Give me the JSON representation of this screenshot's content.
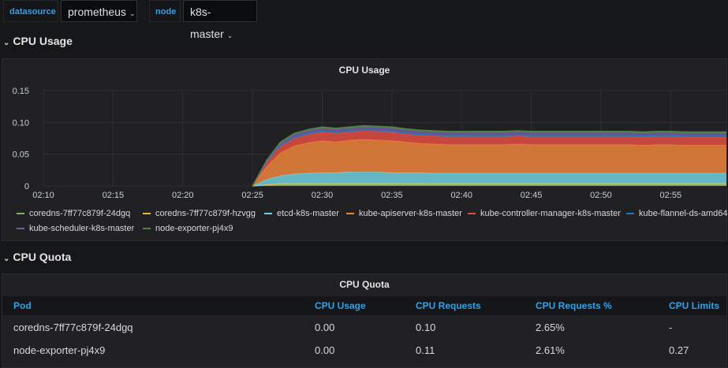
{
  "variables": [
    {
      "label": "datasource",
      "value": "prometheus"
    },
    {
      "label": "node",
      "value": "k8s-master"
    }
  ],
  "rows": {
    "cpu_usage_row": "CPU Usage",
    "cpu_quota_row": "CPU Quota"
  },
  "usage_panel": {
    "title": "CPU Usage"
  },
  "chart_data": {
    "type": "area",
    "stacked": true,
    "title": "CPU Usage",
    "x": [
      "02:10",
      "02:11",
      "02:12",
      "02:13",
      "02:14",
      "02:15",
      "02:16",
      "02:17",
      "02:18",
      "02:19",
      "02:20",
      "02:21",
      "02:22",
      "02:23",
      "02:24",
      "02:25",
      "02:26",
      "02:27",
      "02:28",
      "02:29",
      "02:30",
      "02:31",
      "02:32",
      "02:33",
      "02:34",
      "02:35",
      "02:36",
      "02:37",
      "02:38",
      "02:39",
      "02:40",
      "02:41",
      "02:42",
      "02:43",
      "02:44",
      "02:45",
      "02:46",
      "02:47",
      "02:48",
      "02:49",
      "02:50",
      "02:51",
      "02:52",
      "02:53",
      "02:54",
      "02:55",
      "02:56",
      "02:57",
      "02:58",
      "02:59"
    ],
    "xticks": [
      "02:10",
      "02:15",
      "02:20",
      "02:25",
      "02:30",
      "02:35",
      "02:40",
      "02:45",
      "02:50",
      "02:55"
    ],
    "yticks": [
      "0",
      "0.05",
      "0.10",
      "0.15"
    ],
    "ylim": [
      0,
      0.15
    ],
    "grid": true,
    "legend_position": "bottom",
    "series": [
      {
        "name": "coredns-7ff77c879f-24dgq",
        "color": "#7eb26d",
        "values": [
          null,
          null,
          null,
          null,
          null,
          null,
          null,
          null,
          null,
          null,
          null,
          null,
          null,
          null,
          null,
          0.0,
          0.001,
          0.002,
          0.002,
          0.002,
          0.002,
          0.002,
          0.002,
          0.002,
          0.002,
          0.002,
          0.002,
          0.002,
          0.002,
          0.002,
          0.002,
          0.002,
          0.002,
          0.002,
          0.002,
          0.002,
          0.002,
          0.002,
          0.002,
          0.002,
          0.002,
          0.002,
          0.002,
          0.002,
          0.002,
          0.002,
          0.002,
          0.002,
          0.002,
          0.002
        ]
      },
      {
        "name": "coredns-7ff77c879f-hzvgg",
        "color": "#eab839",
        "values": [
          null,
          null,
          null,
          null,
          null,
          null,
          null,
          null,
          null,
          null,
          null,
          null,
          null,
          null,
          null,
          0.0,
          0.001,
          0.002,
          0.002,
          0.002,
          0.002,
          0.002,
          0.002,
          0.002,
          0.002,
          0.002,
          0.002,
          0.002,
          0.002,
          0.002,
          0.002,
          0.002,
          0.002,
          0.002,
          0.002,
          0.002,
          0.002,
          0.002,
          0.002,
          0.002,
          0.002,
          0.002,
          0.002,
          0.002,
          0.002,
          0.002,
          0.002,
          0.002,
          0.002,
          0.002
        ]
      },
      {
        "name": "etcd-k8s-master",
        "color": "#6ed0e0",
        "values": [
          null,
          null,
          null,
          null,
          null,
          null,
          null,
          null,
          null,
          null,
          null,
          null,
          null,
          null,
          null,
          0.0,
          0.008,
          0.012,
          0.015,
          0.016,
          0.017,
          0.017,
          0.018,
          0.018,
          0.018,
          0.017,
          0.017,
          0.017,
          0.016,
          0.016,
          0.016,
          0.016,
          0.016,
          0.016,
          0.016,
          0.016,
          0.016,
          0.016,
          0.016,
          0.016,
          0.016,
          0.016,
          0.016,
          0.016,
          0.016,
          0.016,
          0.016,
          0.016,
          0.016,
          0.016
        ]
      },
      {
        "name": "kube-apiserver-k8s-master",
        "color": "#ef843c",
        "values": [
          null,
          null,
          null,
          null,
          null,
          null,
          null,
          null,
          null,
          null,
          null,
          null,
          null,
          null,
          null,
          0.0,
          0.02,
          0.036,
          0.044,
          0.048,
          0.05,
          0.048,
          0.05,
          0.051,
          0.05,
          0.05,
          0.048,
          0.046,
          0.046,
          0.045,
          0.045,
          0.045,
          0.045,
          0.045,
          0.046,
          0.045,
          0.045,
          0.045,
          0.045,
          0.045,
          0.045,
          0.045,
          0.045,
          0.044,
          0.045,
          0.045,
          0.044,
          0.044,
          0.044,
          0.044
        ]
      },
      {
        "name": "kube-controller-manager-k8s-master",
        "color": "#e24d42",
        "values": [
          null,
          null,
          null,
          null,
          null,
          null,
          null,
          null,
          null,
          null,
          null,
          null,
          null,
          null,
          null,
          0.0,
          0.006,
          0.01,
          0.012,
          0.013,
          0.014,
          0.014,
          0.013,
          0.014,
          0.014,
          0.014,
          0.013,
          0.013,
          0.013,
          0.013,
          0.013,
          0.013,
          0.013,
          0.013,
          0.013,
          0.013,
          0.013,
          0.013,
          0.013,
          0.013,
          0.013,
          0.013,
          0.013,
          0.013,
          0.013,
          0.013,
          0.013,
          0.013,
          0.013,
          0.013
        ]
      },
      {
        "name": "kube-flannel-ds-amd64",
        "color": "#1f78c1",
        "values": [
          null,
          null,
          null,
          null,
          null,
          null,
          null,
          null,
          null,
          null,
          null,
          null,
          null,
          null,
          null,
          0.0,
          0.001,
          0.002,
          0.002,
          0.002,
          0.002,
          0.002,
          0.002,
          0.002,
          0.002,
          0.002,
          0.002,
          0.002,
          0.002,
          0.002,
          0.002,
          0.002,
          0.002,
          0.002,
          0.002,
          0.002,
          0.002,
          0.002,
          0.002,
          0.002,
          0.002,
          0.002,
          0.002,
          0.002,
          0.002,
          0.002,
          0.002,
          0.002,
          0.002,
          0.002
        ]
      },
      {
        "name": "kube-scheduler-k8s-master",
        "color": "#705da0",
        "values": [
          null,
          null,
          null,
          null,
          null,
          null,
          null,
          null,
          null,
          null,
          null,
          null,
          null,
          null,
          null,
          0.0,
          0.002,
          0.003,
          0.004,
          0.004,
          0.004,
          0.004,
          0.004,
          0.004,
          0.004,
          0.004,
          0.004,
          0.004,
          0.004,
          0.004,
          0.004,
          0.004,
          0.004,
          0.004,
          0.004,
          0.004,
          0.004,
          0.004,
          0.004,
          0.004,
          0.004,
          0.004,
          0.004,
          0.004,
          0.004,
          0.004,
          0.004,
          0.004,
          0.004,
          0.004
        ]
      },
      {
        "name": "node-exporter-pj4x9",
        "color": "#508642",
        "values": [
          null,
          null,
          null,
          null,
          null,
          null,
          null,
          null,
          null,
          null,
          null,
          null,
          null,
          null,
          null,
          0.0,
          0.001,
          0.002,
          0.002,
          0.002,
          0.002,
          0.002,
          0.002,
          0.002,
          0.002,
          0.002,
          0.002,
          0.002,
          0.002,
          0.002,
          0.002,
          0.002,
          0.002,
          0.002,
          0.002,
          0.002,
          0.002,
          0.002,
          0.002,
          0.002,
          0.002,
          0.002,
          0.002,
          0.002,
          0.002,
          0.002,
          0.002,
          0.002,
          0.002,
          0.002
        ]
      }
    ]
  },
  "quota_panel": {
    "title": "CPU Quota",
    "columns": [
      "Pod",
      "CPU Usage",
      "CPU Requests",
      "CPU Requests %",
      "CPU Limits"
    ],
    "rows": [
      [
        "coredns-7ff77c879f-24dgq",
        "0.00",
        "0.10",
        "2.65%",
        "-"
      ],
      [
        "node-exporter-pj4x9",
        "0.00",
        "0.11",
        "2.61%",
        "0.27"
      ]
    ]
  },
  "colors": {
    "accent": "#33a2e5",
    "background": "#161719",
    "panel": "#212124"
  },
  "icons": {
    "row_collapse": "chevron-down-icon",
    "dropdown": "caret-down-icon"
  }
}
